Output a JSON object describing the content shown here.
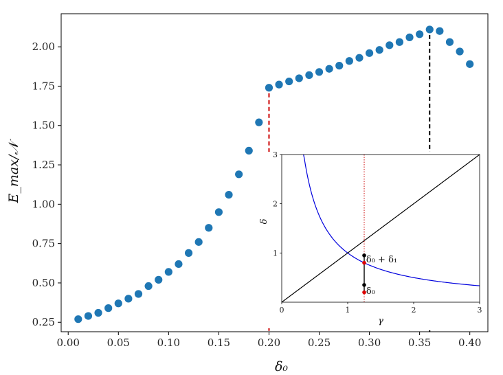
{
  "chart_data": [
    {
      "type": "scatter",
      "xlabel": "δ₀",
      "ylabel": "E_max/𝒩",
      "xlim": [
        -0.007,
        0.418
      ],
      "ylim": [
        0.19,
        2.21
      ],
      "xticks": [
        0.0,
        0.05,
        0.1,
        0.15,
        0.2,
        0.25,
        0.3,
        0.35,
        0.4
      ],
      "xtick_labels": [
        "0.00",
        "0.05",
        "0.10",
        "0.15",
        "0.20",
        "0.25",
        "0.30",
        "0.35",
        "0.40"
      ],
      "yticks": [
        0.25,
        0.5,
        0.75,
        1.0,
        1.25,
        1.5,
        1.75,
        2.0
      ],
      "ytick_labels": [
        "0.25",
        "0.50",
        "0.75",
        "1.00",
        "1.25",
        "1.50",
        "1.75",
        "2.00"
      ],
      "grid": false,
      "marker_color": "#1f77b4",
      "x": [
        0.01,
        0.02,
        0.03,
        0.04,
        0.05,
        0.06,
        0.07,
        0.08,
        0.09,
        0.1,
        0.11,
        0.12,
        0.13,
        0.14,
        0.15,
        0.16,
        0.17,
        0.18,
        0.19,
        0.2,
        0.21,
        0.22,
        0.23,
        0.24,
        0.25,
        0.26,
        0.27,
        0.28,
        0.29,
        0.3,
        0.31,
        0.32,
        0.33,
        0.34,
        0.35,
        0.36,
        0.37,
        0.38,
        0.39,
        0.4
      ],
      "y": [
        0.27,
        0.29,
        0.31,
        0.34,
        0.37,
        0.4,
        0.43,
        0.48,
        0.52,
        0.57,
        0.62,
        0.69,
        0.76,
        0.85,
        0.95,
        1.06,
        1.19,
        1.34,
        1.52,
        1.74,
        1.76,
        1.78,
        1.8,
        1.82,
        1.84,
        1.86,
        1.88,
        1.91,
        1.93,
        1.96,
        1.98,
        2.01,
        2.03,
        2.06,
        2.08,
        2.11,
        2.1,
        2.03,
        1.97,
        1.89
      ],
      "vlines": [
        {
          "x": 0.2,
          "color": "#cc0000"
        },
        {
          "x": 0.36,
          "color": "#000000"
        }
      ]
    },
    {
      "type": "line",
      "xlabel": "γ",
      "ylabel": "δ",
      "xlim": [
        0,
        3
      ],
      "ylim": [
        0,
        3
      ],
      "xticks": [
        0,
        1,
        2,
        3
      ],
      "xtick_labels": [
        "0",
        "1",
        "2",
        "3"
      ],
      "yticks": [
        1,
        2,
        3
      ],
      "ytick_labels": [
        "1",
        "2",
        "3"
      ],
      "series": [
        {
          "kind": "reciprocal",
          "k": 1,
          "x_min": 0.33,
          "x_max": 3,
          "color": "#0000dd"
        },
        {
          "kind": "identity",
          "x_min": 0,
          "x_max": 3,
          "color": "#000000"
        }
      ],
      "vline": {
        "x": 1.25,
        "color": "#cc0000",
        "style": "dotted"
      },
      "points": [
        {
          "x": 1.25,
          "y": 0.95,
          "color": "#000000"
        },
        {
          "x": 1.25,
          "y": 0.8,
          "color": "#dd0000"
        },
        {
          "x": 1.25,
          "y": 0.35,
          "color": "#000000"
        },
        {
          "x": 1.25,
          "y": 0.2,
          "color": "#dd0000"
        }
      ],
      "annotations": [
        {
          "text": "δ₀ + δ₁",
          "x": 1.28,
          "y": 0.88
        },
        {
          "text": "δ₀",
          "x": 1.28,
          "y": 0.24
        }
      ]
    }
  ]
}
